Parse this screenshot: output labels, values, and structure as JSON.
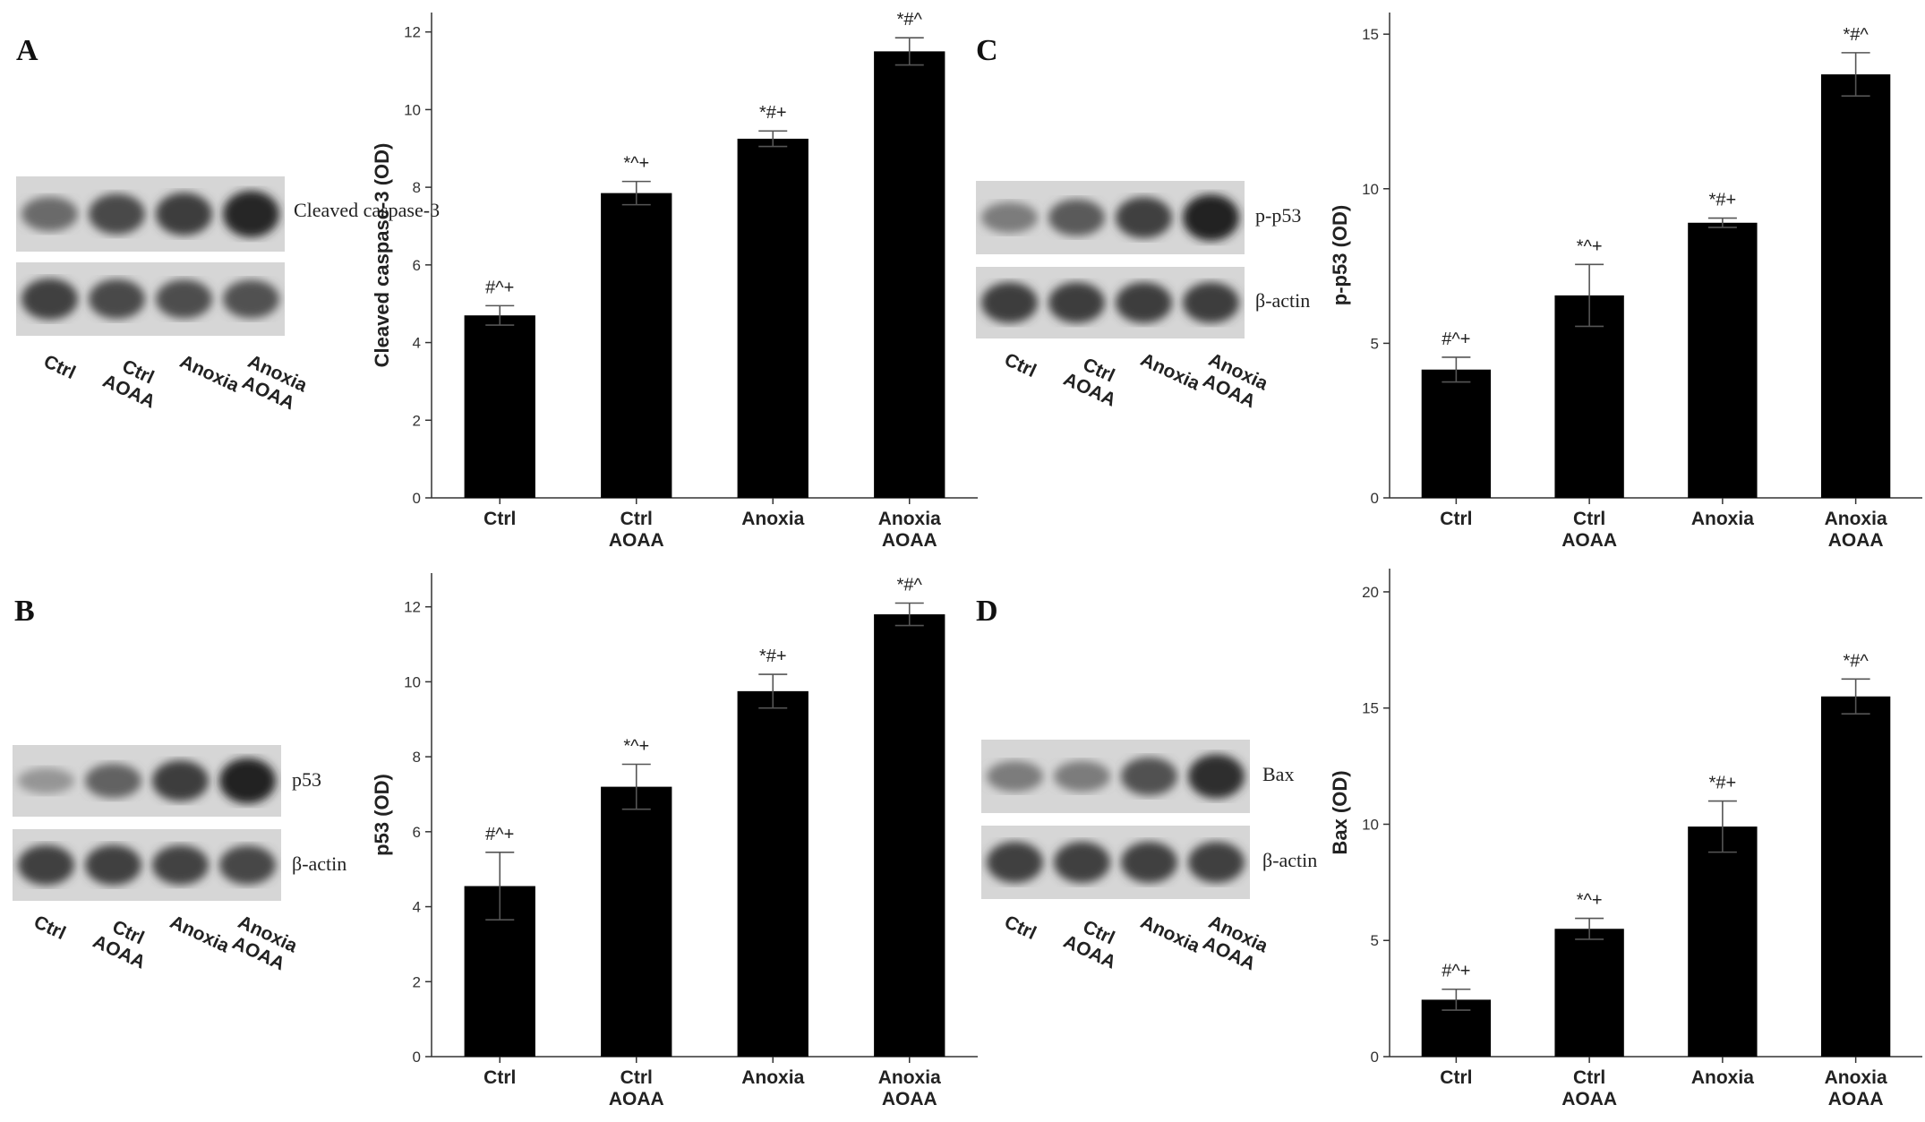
{
  "lanes": [
    "Ctrl",
    "Ctrl AOAA",
    "Anoxia",
    "Anoxia AOAA"
  ],
  "panels": [
    {
      "id": "A",
      "letter": "A",
      "blots": [
        {
          "label": "Cleaved caspase-3",
          "intensities": [
            0.55,
            0.75,
            0.82,
            0.95
          ]
        },
        {
          "label": "",
          "intensities": [
            0.8,
            0.75,
            0.72,
            0.7
          ]
        }
      ]
    },
    {
      "id": "B",
      "letter": "B",
      "blots": [
        {
          "label": "p53",
          "intensities": [
            0.3,
            0.6,
            0.82,
            0.98
          ]
        },
        {
          "label": "β-actin",
          "intensities": [
            0.8,
            0.8,
            0.78,
            0.76
          ]
        }
      ]
    },
    {
      "id": "C",
      "letter": "C",
      "blots": [
        {
          "label": "p-p53",
          "intensities": [
            0.45,
            0.65,
            0.8,
            0.98
          ]
        },
        {
          "label": "β-actin",
          "intensities": [
            0.82,
            0.82,
            0.82,
            0.82
          ]
        }
      ]
    },
    {
      "id": "D",
      "letter": "D",
      "blots": [
        {
          "label": "Bax",
          "intensities": [
            0.45,
            0.45,
            0.7,
            0.9
          ]
        },
        {
          "label": "β-actin",
          "intensities": [
            0.8,
            0.8,
            0.8,
            0.8
          ]
        }
      ]
    }
  ],
  "chart_data": [
    {
      "panel": "A",
      "type": "bar",
      "categories": [
        "Ctrl",
        "Ctrl\nAOAA",
        "Anoxia",
        "Anoxia\nAOAA"
      ],
      "values": [
        4.7,
        7.85,
        9.25,
        11.5
      ],
      "errors": [
        0.25,
        0.3,
        0.2,
        0.35
      ],
      "annotations": [
        "#^+",
        "*^+",
        "*#+",
        "*#^"
      ],
      "ylabel": "Cleaved caspase-3 (OD)",
      "ylim": [
        0,
        12.5
      ],
      "yticks": [
        0,
        2,
        4,
        6,
        8,
        10,
        12
      ],
      "bar_color": "#000000"
    },
    {
      "panel": "B",
      "type": "bar",
      "categories": [
        "Ctrl",
        "Ctrl\nAOAA",
        "Anoxia",
        "Anoxia\nAOAA"
      ],
      "values": [
        4.55,
        7.2,
        9.75,
        11.8
      ],
      "errors": [
        0.9,
        0.6,
        0.45,
        0.3
      ],
      "annotations": [
        "#^+",
        "*^+",
        "*#+",
        "*#^"
      ],
      "ylabel": "p53 (OD)",
      "ylim": [
        0,
        12.9
      ],
      "yticks": [
        0,
        2,
        4,
        6,
        8,
        10,
        12
      ],
      "bar_color": "#000000"
    },
    {
      "panel": "C",
      "type": "bar",
      "categories": [
        "Ctrl",
        "Ctrl\nAOAA",
        "Anoxia",
        "Anoxia\nAOAA"
      ],
      "values": [
        4.15,
        6.55,
        8.9,
        13.7
      ],
      "errors": [
        0.4,
        1.0,
        0.15,
        0.7
      ],
      "annotations": [
        "#^+",
        "*^+",
        "*#+",
        "*#^"
      ],
      "ylabel": "p-p53 (OD)",
      "ylim": [
        0,
        15.7
      ],
      "yticks": [
        0,
        5,
        10,
        15
      ],
      "bar_color": "#000000"
    },
    {
      "panel": "D",
      "type": "bar",
      "categories": [
        "Ctrl",
        "Ctrl\nAOAA",
        "Anoxia",
        "Anoxia\nAOAA"
      ],
      "values": [
        2.45,
        5.5,
        9.9,
        15.5
      ],
      "errors": [
        0.45,
        0.45,
        1.1,
        0.75
      ],
      "annotations": [
        "#^+",
        "*^+",
        "*#+",
        "*#^"
      ],
      "ylabel": "Bax (OD)",
      "ylim": [
        0,
        21
      ],
      "yticks": [
        0,
        5,
        10,
        15,
        20
      ],
      "bar_color": "#000000"
    }
  ]
}
